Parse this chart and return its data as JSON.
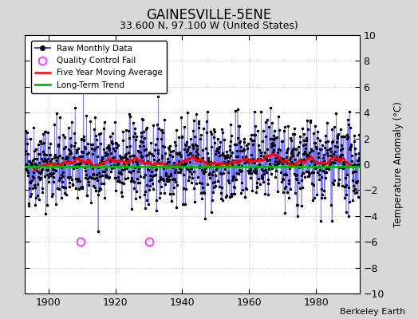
{
  "title": "GAINESVILLE-5ENE",
  "subtitle": "33.600 N, 97.100 W (United States)",
  "ylabel": "Temperature Anomaly (°C)",
  "credit": "Berkeley Earth",
  "xlim": [
    1893,
    1993
  ],
  "ylim": [
    -10,
    10
  ],
  "yticks": [
    -10,
    -8,
    -6,
    -4,
    -2,
    0,
    2,
    4,
    6,
    8,
    10
  ],
  "xticks": [
    1900,
    1920,
    1940,
    1960,
    1980
  ],
  "start_year": 1893,
  "end_year": 1993,
  "fig_bg_color": "#d8d8d8",
  "plot_bg_color": "#ffffff",
  "raw_color": "#4444ff",
  "moving_avg_color": "#ff0000",
  "trend_color": "#00bb00",
  "qc_color": "#ff44ff",
  "seed": 42,
  "qc_years": [
    1909.5,
    1930.0
  ],
  "qc_vals": [
    -6.0,
    -6.0
  ]
}
